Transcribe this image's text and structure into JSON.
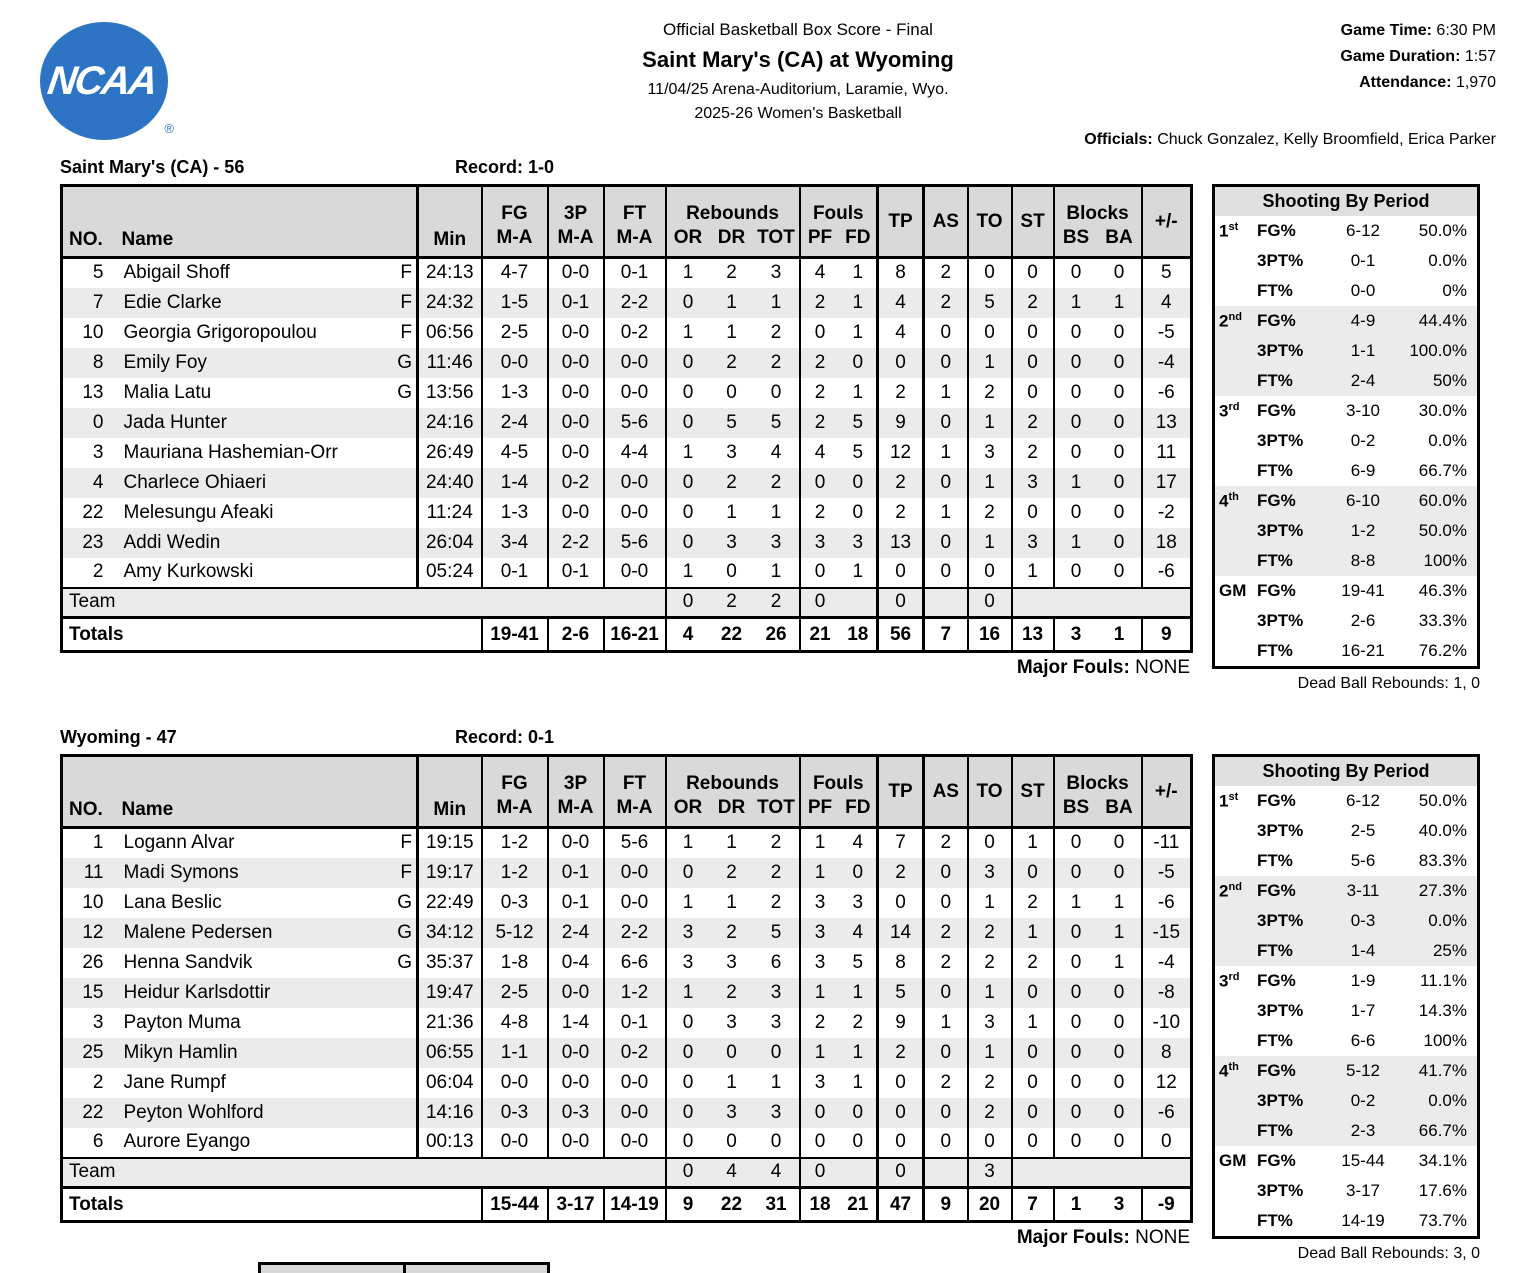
{
  "header": {
    "logo_text": "NCAA",
    "logo_reg": "®",
    "doc_type": "Official Basketball Box Score - Final",
    "matchup": "Saint Mary's (CA) at Wyoming",
    "venue_line": "11/04/25 Arena-Auditorium, Laramie, Wyo.",
    "season_line": "2025-26 Women's Basketball",
    "game_time_label": "Game Time:",
    "game_time": " 6:30 PM",
    "game_duration_label": "Game Duration:",
    "game_duration": " 1:57",
    "attendance_label": "Attendance:",
    "attendance": " 1,970",
    "officials_label": "Officials:",
    "officials": " Chuck Gonzalez, Kelly Broomfield, Erica Parker"
  },
  "table_headers": {
    "no": "NO.",
    "name": "Name",
    "min": "Min",
    "fg": "FG",
    "tp3": "3P",
    "ft": "FT",
    "ma": "M-A",
    "rebounds": "Rebounds",
    "or": "OR",
    "dr": "DR",
    "tot": "TOT",
    "fouls": "Fouls",
    "pf": "PF",
    "fd": "FD",
    "tp": "TP",
    "as": "AS",
    "to": "TO",
    "st": "ST",
    "blocks": "Blocks",
    "bs": "BS",
    "ba": "BA",
    "plusminus": "+/-",
    "team_row_label": "Team",
    "totals_label": "Totals",
    "major_fouls_label": "Major Fouls:",
    "major_fouls_value": " NONE",
    "shooting_title": "Shooting By Period"
  },
  "teams": [
    {
      "title": "Saint Mary's (CA) - 56",
      "record": "Record: 1-0",
      "players": [
        {
          "no": "5",
          "name": "Abigail Shoff",
          "pos": "F",
          "min": "24:13",
          "fg": "4-7",
          "tp3": "0-0",
          "ft": "0-1",
          "or": "1",
          "dr": "2",
          "tot": "3",
          "pf": "4",
          "fd": "1",
          "tp": "8",
          "as": "2",
          "to": "0",
          "st": "0",
          "bs": "0",
          "ba": "0",
          "pm": "5"
        },
        {
          "no": "7",
          "name": "Edie Clarke",
          "pos": "F",
          "min": "24:32",
          "fg": "1-5",
          "tp3": "0-1",
          "ft": "2-2",
          "or": "0",
          "dr": "1",
          "tot": "1",
          "pf": "2",
          "fd": "1",
          "tp": "4",
          "as": "2",
          "to": "5",
          "st": "2",
          "bs": "1",
          "ba": "1",
          "pm": "4"
        },
        {
          "no": "10",
          "name": "Georgia Grigoropoulou",
          "pos": "F",
          "min": "06:56",
          "fg": "2-5",
          "tp3": "0-0",
          "ft": "0-2",
          "or": "1",
          "dr": "1",
          "tot": "2",
          "pf": "0",
          "fd": "1",
          "tp": "4",
          "as": "0",
          "to": "0",
          "st": "0",
          "bs": "0",
          "ba": "0",
          "pm": "-5"
        },
        {
          "no": "8",
          "name": "Emily Foy",
          "pos": "G",
          "min": "11:46",
          "fg": "0-0",
          "tp3": "0-0",
          "ft": "0-0",
          "or": "0",
          "dr": "2",
          "tot": "2",
          "pf": "2",
          "fd": "0",
          "tp": "0",
          "as": "0",
          "to": "1",
          "st": "0",
          "bs": "0",
          "ba": "0",
          "pm": "-4"
        },
        {
          "no": "13",
          "name": "Malia Latu",
          "pos": "G",
          "min": "13:56",
          "fg": "1-3",
          "tp3": "0-0",
          "ft": "0-0",
          "or": "0",
          "dr": "0",
          "tot": "0",
          "pf": "2",
          "fd": "1",
          "tp": "2",
          "as": "1",
          "to": "2",
          "st": "0",
          "bs": "0",
          "ba": "0",
          "pm": "-6"
        },
        {
          "no": "0",
          "name": "Jada Hunter",
          "pos": "",
          "min": "24:16",
          "fg": "2-4",
          "tp3": "0-0",
          "ft": "5-6",
          "or": "0",
          "dr": "5",
          "tot": "5",
          "pf": "2",
          "fd": "5",
          "tp": "9",
          "as": "0",
          "to": "1",
          "st": "2",
          "bs": "0",
          "ba": "0",
          "pm": "13"
        },
        {
          "no": "3",
          "name": "Mauriana Hashemian-Orr",
          "pos": "",
          "min": "26:49",
          "fg": "4-5",
          "tp3": "0-0",
          "ft": "4-4",
          "or": "1",
          "dr": "3",
          "tot": "4",
          "pf": "4",
          "fd": "5",
          "tp": "12",
          "as": "1",
          "to": "3",
          "st": "2",
          "bs": "0",
          "ba": "0",
          "pm": "11"
        },
        {
          "no": "4",
          "name": "Charlece Ohiaeri",
          "pos": "",
          "min": "24:40",
          "fg": "1-4",
          "tp3": "0-2",
          "ft": "0-0",
          "or": "0",
          "dr": "2",
          "tot": "2",
          "pf": "0",
          "fd": "0",
          "tp": "2",
          "as": "0",
          "to": "1",
          "st": "3",
          "bs": "1",
          "ba": "0",
          "pm": "17"
        },
        {
          "no": "22",
          "name": "Melesungu Afeaki",
          "pos": "",
          "min": "11:24",
          "fg": "1-3",
          "tp3": "0-0",
          "ft": "0-0",
          "or": "0",
          "dr": "1",
          "tot": "1",
          "pf": "2",
          "fd": "0",
          "tp": "2",
          "as": "1",
          "to": "2",
          "st": "0",
          "bs": "0",
          "ba": "0",
          "pm": "-2"
        },
        {
          "no": "23",
          "name": "Addi Wedin",
          "pos": "",
          "min": "26:04",
          "fg": "3-4",
          "tp3": "2-2",
          "ft": "5-6",
          "or": "0",
          "dr": "3",
          "tot": "3",
          "pf": "3",
          "fd": "3",
          "tp": "13",
          "as": "0",
          "to": "1",
          "st": "3",
          "bs": "1",
          "ba": "0",
          "pm": "18"
        },
        {
          "no": "2",
          "name": "Amy Kurkowski",
          "pos": "",
          "min": "05:24",
          "fg": "0-1",
          "tp3": "0-1",
          "ft": "0-0",
          "or": "1",
          "dr": "0",
          "tot": "1",
          "pf": "0",
          "fd": "1",
          "tp": "0",
          "as": "0",
          "to": "0",
          "st": "1",
          "bs": "0",
          "ba": "0",
          "pm": "-6"
        }
      ],
      "team_row": {
        "or": "0",
        "dr": "2",
        "tot": "2",
        "pf": "0",
        "tp": "0",
        "to": "0"
      },
      "totals": {
        "fg": "19-41",
        "tp3": "2-6",
        "ft": "16-21",
        "or": "4",
        "dr": "22",
        "tot": "26",
        "pf": "21",
        "fd": "18",
        "tp": "56",
        "as": "7",
        "to": "16",
        "st": "13",
        "bs": "3",
        "ba": "1",
        "pm": "9"
      },
      "shooting": [
        {
          "period": "1",
          "sup": "st",
          "shaded": false,
          "rows": [
            [
              "FG%",
              "6-12",
              "50.0%"
            ],
            [
              "3PT%",
              "0-1",
              "0.0%"
            ],
            [
              "FT%",
              "0-0",
              "0%"
            ]
          ]
        },
        {
          "period": "2",
          "sup": "nd",
          "shaded": true,
          "rows": [
            [
              "FG%",
              "4-9",
              "44.4%"
            ],
            [
              "3PT%",
              "1-1",
              "100.0%"
            ],
            [
              "FT%",
              "2-4",
              "50%"
            ]
          ]
        },
        {
          "period": "3",
          "sup": "rd",
          "shaded": false,
          "rows": [
            [
              "FG%",
              "3-10",
              "30.0%"
            ],
            [
              "3PT%",
              "0-2",
              "0.0%"
            ],
            [
              "FT%",
              "6-9",
              "66.7%"
            ]
          ]
        },
        {
          "period": "4",
          "sup": "th",
          "shaded": true,
          "rows": [
            [
              "FG%",
              "6-10",
              "60.0%"
            ],
            [
              "3PT%",
              "1-2",
              "50.0%"
            ],
            [
              "FT%",
              "8-8",
              "100%"
            ]
          ]
        },
        {
          "period": "GM",
          "sup": "",
          "shaded": false,
          "rows": [
            [
              "FG%",
              "19-41",
              "46.3%"
            ],
            [
              "3PT%",
              "2-6",
              "33.3%"
            ],
            [
              "FT%",
              "16-21",
              "76.2%"
            ]
          ]
        }
      ],
      "dead_ball": "Dead Ball Rebounds: 1, 0"
    },
    {
      "title": "Wyoming - 47",
      "record": "Record: 0-1",
      "players": [
        {
          "no": "1",
          "name": "Logann Alvar",
          "pos": "F",
          "min": "19:15",
          "fg": "1-2",
          "tp3": "0-0",
          "ft": "5-6",
          "or": "1",
          "dr": "1",
          "tot": "2",
          "pf": "1",
          "fd": "4",
          "tp": "7",
          "as": "2",
          "to": "0",
          "st": "1",
          "bs": "0",
          "ba": "0",
          "pm": "-11"
        },
        {
          "no": "11",
          "name": "Madi Symons",
          "pos": "F",
          "min": "19:17",
          "fg": "1-2",
          "tp3": "0-1",
          "ft": "0-0",
          "or": "0",
          "dr": "2",
          "tot": "2",
          "pf": "1",
          "fd": "0",
          "tp": "2",
          "as": "0",
          "to": "3",
          "st": "0",
          "bs": "0",
          "ba": "0",
          "pm": "-5"
        },
        {
          "no": "10",
          "name": "Lana Beslic",
          "pos": "G",
          "min": "22:49",
          "fg": "0-3",
          "tp3": "0-1",
          "ft": "0-0",
          "or": "1",
          "dr": "1",
          "tot": "2",
          "pf": "3",
          "fd": "3",
          "tp": "0",
          "as": "0",
          "to": "1",
          "st": "2",
          "bs": "1",
          "ba": "1",
          "pm": "-6"
        },
        {
          "no": "12",
          "name": "Malene Pedersen",
          "pos": "G",
          "min": "34:12",
          "fg": "5-12",
          "tp3": "2-4",
          "ft": "2-2",
          "or": "3",
          "dr": "2",
          "tot": "5",
          "pf": "3",
          "fd": "4",
          "tp": "14",
          "as": "2",
          "to": "2",
          "st": "1",
          "bs": "0",
          "ba": "1",
          "pm": "-15"
        },
        {
          "no": "26",
          "name": "Henna Sandvik",
          "pos": "G",
          "min": "35:37",
          "fg": "1-8",
          "tp3": "0-4",
          "ft": "6-6",
          "or": "3",
          "dr": "3",
          "tot": "6",
          "pf": "3",
          "fd": "5",
          "tp": "8",
          "as": "2",
          "to": "2",
          "st": "2",
          "bs": "0",
          "ba": "1",
          "pm": "-4"
        },
        {
          "no": "15",
          "name": "Heidur Karlsdottir",
          "pos": "",
          "min": "19:47",
          "fg": "2-5",
          "tp3": "0-0",
          "ft": "1-2",
          "or": "1",
          "dr": "2",
          "tot": "3",
          "pf": "1",
          "fd": "1",
          "tp": "5",
          "as": "0",
          "to": "1",
          "st": "0",
          "bs": "0",
          "ba": "0",
          "pm": "-8"
        },
        {
          "no": "3",
          "name": "Payton Muma",
          "pos": "",
          "min": "21:36",
          "fg": "4-8",
          "tp3": "1-4",
          "ft": "0-1",
          "or": "0",
          "dr": "3",
          "tot": "3",
          "pf": "2",
          "fd": "2",
          "tp": "9",
          "as": "1",
          "to": "3",
          "st": "1",
          "bs": "0",
          "ba": "0",
          "pm": "-10"
        },
        {
          "no": "25",
          "name": "Mikyn Hamlin",
          "pos": "",
          "min": "06:55",
          "fg": "1-1",
          "tp3": "0-0",
          "ft": "0-2",
          "or": "0",
          "dr": "0",
          "tot": "0",
          "pf": "1",
          "fd": "1",
          "tp": "2",
          "as": "0",
          "to": "1",
          "st": "0",
          "bs": "0",
          "ba": "0",
          "pm": "8"
        },
        {
          "no": "2",
          "name": "Jane Rumpf",
          "pos": "",
          "min": "06:04",
          "fg": "0-0",
          "tp3": "0-0",
          "ft": "0-0",
          "or": "0",
          "dr": "1",
          "tot": "1",
          "pf": "3",
          "fd": "1",
          "tp": "0",
          "as": "2",
          "to": "2",
          "st": "0",
          "bs": "0",
          "ba": "0",
          "pm": "12"
        },
        {
          "no": "22",
          "name": "Peyton Wohlford",
          "pos": "",
          "min": "14:16",
          "fg": "0-3",
          "tp3": "0-3",
          "ft": "0-0",
          "or": "0",
          "dr": "3",
          "tot": "3",
          "pf": "0",
          "fd": "0",
          "tp": "0",
          "as": "0",
          "to": "2",
          "st": "0",
          "bs": "0",
          "ba": "0",
          "pm": "-6"
        },
        {
          "no": "6",
          "name": "Aurore Eyango",
          "pos": "",
          "min": "00:13",
          "fg": "0-0",
          "tp3": "0-0",
          "ft": "0-0",
          "or": "0",
          "dr": "0",
          "tot": "0",
          "pf": "0",
          "fd": "0",
          "tp": "0",
          "as": "0",
          "to": "0",
          "st": "0",
          "bs": "0",
          "ba": "0",
          "pm": "0"
        }
      ],
      "team_row": {
        "or": "0",
        "dr": "4",
        "tot": "4",
        "pf": "0",
        "tp": "0",
        "to": "3"
      },
      "totals": {
        "fg": "15-44",
        "tp3": "3-17",
        "ft": "14-19",
        "or": "9",
        "dr": "22",
        "tot": "31",
        "pf": "18",
        "fd": "21",
        "tp": "47",
        "as": "9",
        "to": "20",
        "st": "7",
        "bs": "1",
        "ba": "3",
        "pm": "-9"
      },
      "shooting": [
        {
          "period": "1",
          "sup": "st",
          "shaded": false,
          "rows": [
            [
              "FG%",
              "6-12",
              "50.0%"
            ],
            [
              "3PT%",
              "2-5",
              "40.0%"
            ],
            [
              "FT%",
              "5-6",
              "83.3%"
            ]
          ]
        },
        {
          "period": "2",
          "sup": "nd",
          "shaded": true,
          "rows": [
            [
              "FG%",
              "3-11",
              "27.3%"
            ],
            [
              "3PT%",
              "0-3",
              "0.0%"
            ],
            [
              "FT%",
              "1-4",
              "25%"
            ]
          ]
        },
        {
          "period": "3",
          "sup": "rd",
          "shaded": false,
          "rows": [
            [
              "FG%",
              "1-9",
              "11.1%"
            ],
            [
              "3PT%",
              "1-7",
              "14.3%"
            ],
            [
              "FT%",
              "6-6",
              "100%"
            ]
          ]
        },
        {
          "period": "4",
          "sup": "th",
          "shaded": true,
          "rows": [
            [
              "FG%",
              "5-12",
              "41.7%"
            ],
            [
              "3PT%",
              "0-2",
              "0.0%"
            ],
            [
              "FT%",
              "2-3",
              "66.7%"
            ]
          ]
        },
        {
          "period": "GM",
          "sup": "",
          "shaded": false,
          "rows": [
            [
              "FG%",
              "15-44",
              "34.1%"
            ],
            [
              "3PT%",
              "3-17",
              "17.6%"
            ],
            [
              "FT%",
              "14-19",
              "73.7%"
            ]
          ]
        }
      ],
      "dead_ball": "Dead Ball Rebounds: 3, 0"
    }
  ]
}
